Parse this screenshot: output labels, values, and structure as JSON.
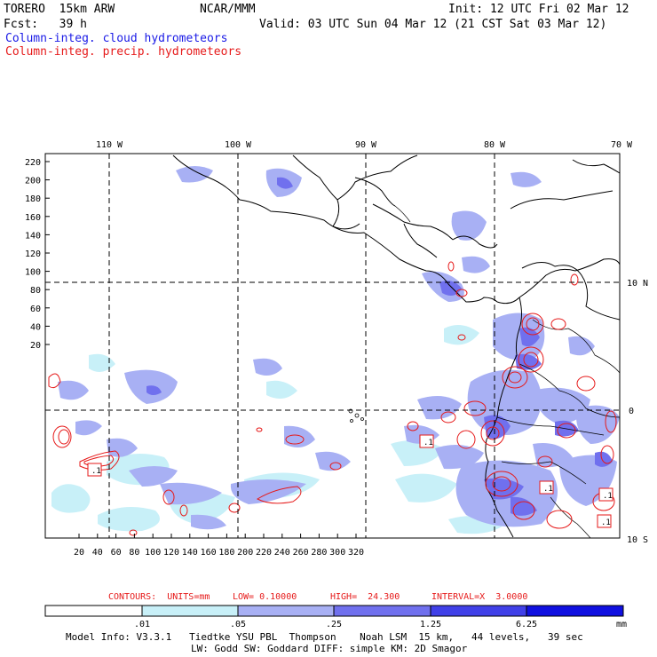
{
  "header": {
    "model": "TORERO  15km ARW",
    "org": "NCAR/MMM",
    "init": "Init: 12 UTC Fri 02 Mar 12",
    "fcst": "Fcst:   39 h",
    "valid": "Valid: 03 UTC Sun 04 Mar 12 (21 CST Sat 03 Mar 12)",
    "field1": "Column-integ. cloud hydrometeors",
    "field2": "Column-integ. precip. hydrometeors"
  },
  "colors": {
    "field1": "#1a1ae6",
    "field2": "#e61a1a",
    "bins": [
      "#ffffff",
      "#c8f0f8",
      "#a8b0f4",
      "#7070ee",
      "#4040e8",
      "#1010e0"
    ]
  },
  "map": {
    "lon_labels": [
      "110 W",
      "100 W",
      "90 W",
      "80 W",
      "70 W"
    ],
    "lat_labels": [
      "10 N",
      "0",
      "10 S"
    ],
    "y_ticks": [
      "220",
      "200",
      "180",
      "160",
      "140",
      "120",
      "100",
      "80",
      "60",
      "40",
      "20"
    ],
    "x_ticks": [
      "20",
      "40",
      "60",
      "80",
      "100",
      "120",
      "140",
      "160",
      "180",
      "200",
      "220",
      "240",
      "260",
      "280",
      "300",
      "320"
    ],
    "low_markers": [
      ".1",
      ".1",
      ".1",
      ".1",
      ".1"
    ]
  },
  "contours_line": {
    "contours": "CONTOURS:  UNITS=mm",
    "low": "LOW= 0.10000",
    "high": "HIGH=  24.300",
    "interval": "INTERVAL=X  3.0000"
  },
  "colorbar": {
    "labels": [
      ".01",
      ".05",
      ".25",
      "1.25",
      "6.25"
    ],
    "units": "mm"
  },
  "footer": {
    "line1": "Model Info: V3.3.1   Tiedtke YSU PBL  Thompson    Noah LSM  15 km,   44 levels,   39 sec",
    "line2": "LW: Godd SW: Goddard DIFF: simple KM: 2D Smagor"
  }
}
